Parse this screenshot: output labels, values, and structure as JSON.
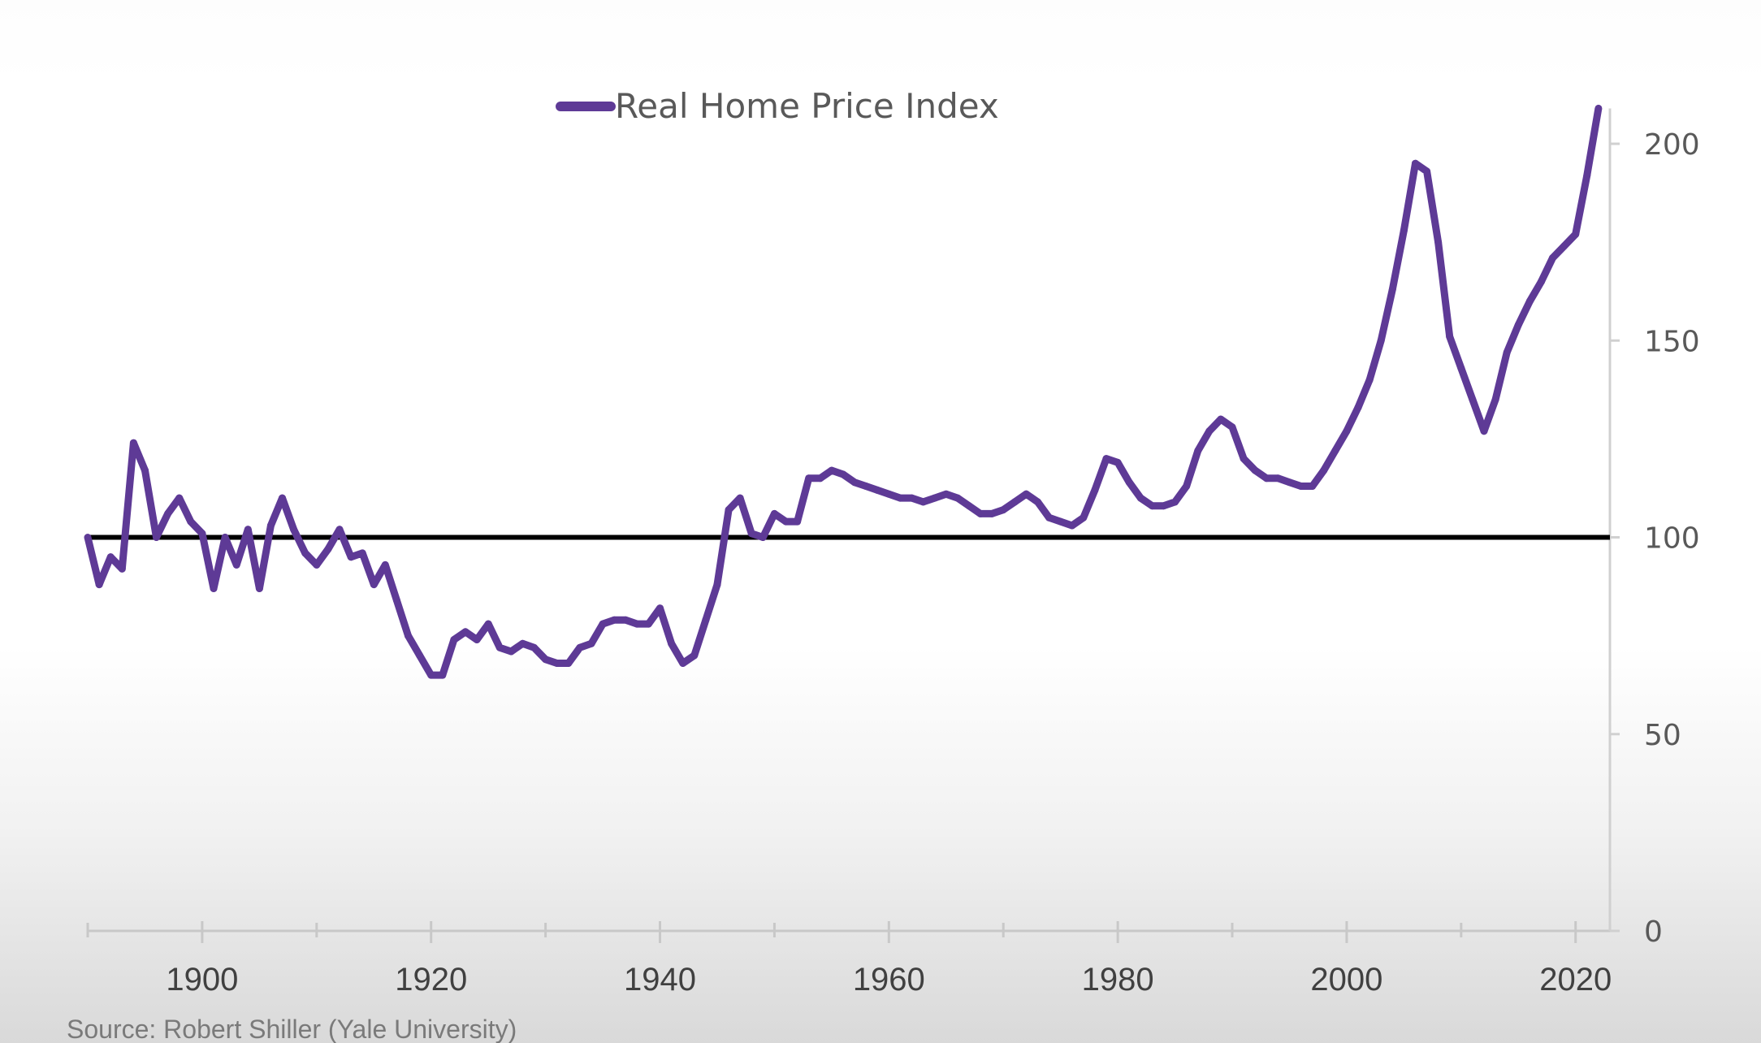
{
  "chart_data": {
    "type": "line",
    "title": "",
    "xlabel": "",
    "ylabel": "",
    "xlim": [
      1890,
      2023
    ],
    "ylim": [
      0,
      210
    ],
    "x_ticks": [
      1900,
      1920,
      1940,
      1960,
      1980,
      2000,
      2020
    ],
    "x_tick_labels": [
      "1900",
      "1920",
      "1940",
      "1960",
      "1980",
      "2000",
      "2020"
    ],
    "y_ticks": [
      0,
      50,
      100,
      150,
      200
    ],
    "y_tick_labels": [
      "0",
      "50",
      "100",
      "150",
      "200"
    ],
    "y_axis_position": "right",
    "grid": false,
    "legend": {
      "position": "top-center",
      "entries": [
        "Real Home Price Index"
      ]
    },
    "series": [
      {
        "name": "Real Home Price Index",
        "color": "#5e3a96",
        "x": [
          1890,
          1891,
          1892,
          1893,
          1894,
          1895,
          1896,
          1897,
          1898,
          1899,
          1900,
          1901,
          1902,
          1903,
          1904,
          1905,
          1906,
          1907,
          1908,
          1909,
          1910,
          1911,
          1912,
          1913,
          1914,
          1915,
          1916,
          1917,
          1918,
          1919,
          1920,
          1921,
          1922,
          1923,
          1924,
          1925,
          1926,
          1927,
          1928,
          1929,
          1930,
          1931,
          1932,
          1933,
          1934,
          1935,
          1936,
          1937,
          1938,
          1939,
          1940,
          1941,
          1942,
          1943,
          1944,
          1945,
          1946,
          1947,
          1948,
          1949,
          1950,
          1951,
          1952,
          1953,
          1954,
          1955,
          1956,
          1957,
          1958,
          1959,
          1960,
          1961,
          1962,
          1963,
          1964,
          1965,
          1966,
          1967,
          1968,
          1969,
          1970,
          1971,
          1972,
          1973,
          1974,
          1975,
          1976,
          1977,
          1978,
          1979,
          1980,
          1981,
          1982,
          1983,
          1984,
          1985,
          1986,
          1987,
          1988,
          1989,
          1990,
          1991,
          1992,
          1993,
          1994,
          1995,
          1996,
          1997,
          1998,
          1999,
          2000,
          2001,
          2002,
          2003,
          2004,
          2005,
          2006,
          2007,
          2008,
          2009,
          2010,
          2011,
          2012,
          2013,
          2014,
          2015,
          2016,
          2017,
          2018,
          2019,
          2020,
          2021,
          2022
        ],
        "values": [
          100,
          88,
          95,
          92,
          124,
          117,
          100,
          106,
          110,
          104,
          101,
          87,
          100,
          93,
          102,
          87,
          103,
          110,
          102,
          96,
          93,
          97,
          102,
          95,
          96,
          88,
          93,
          84,
          75,
          70,
          65,
          65,
          74,
          76,
          74,
          78,
          72,
          71,
          73,
          72,
          69,
          68,
          68,
          72,
          73,
          78,
          79,
          79,
          78,
          78,
          82,
          73,
          68,
          70,
          79,
          88,
          107,
          110,
          101,
          100,
          106,
          104,
          104,
          115,
          115,
          117,
          116,
          114,
          113,
          112,
          111,
          110,
          110,
          109,
          110,
          111,
          110,
          108,
          106,
          106,
          107,
          109,
          111,
          109,
          105,
          104,
          103,
          105,
          112,
          120,
          119,
          114,
          110,
          108,
          108,
          109,
          113,
          122,
          127,
          130,
          128,
          120,
          117,
          115,
          115,
          114,
          113,
          113,
          117,
          122,
          127,
          133,
          140,
          150,
          163,
          178,
          195,
          193,
          175,
          151,
          143,
          135,
          127,
          135,
          147,
          154,
          160,
          165,
          171,
          174,
          177,
          192,
          209
        ]
      },
      {
        "name": "baseline",
        "color": "#000000",
        "value": 100
      }
    ],
    "source": "Source: Robert Shiller (Yale University)"
  }
}
